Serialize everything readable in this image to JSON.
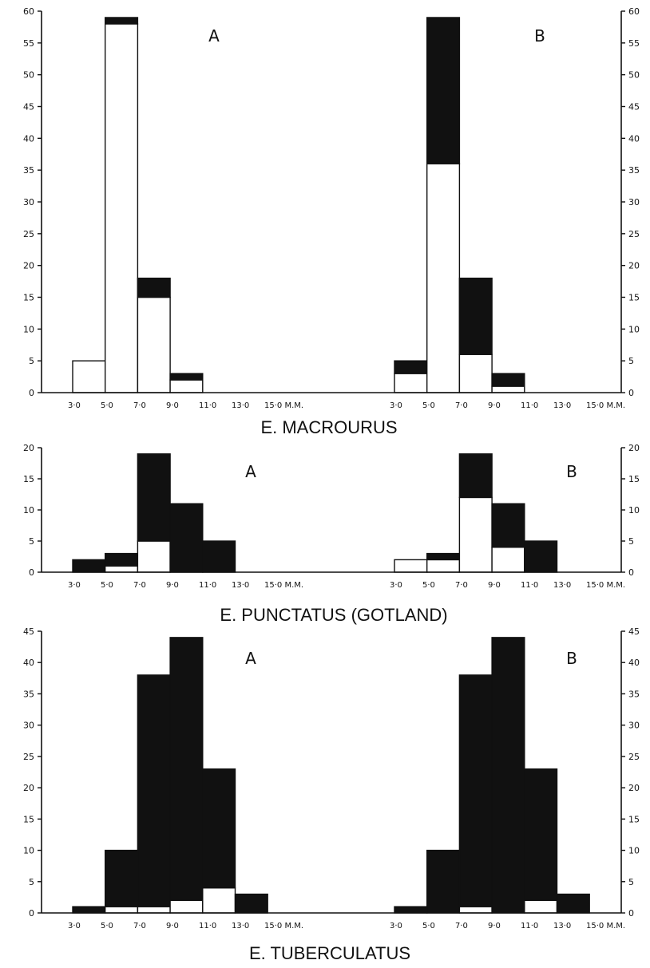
{
  "chart_data": [
    {
      "type": "bar",
      "stacked": true,
      "title": "E. MACROURUS",
      "x": [
        "3·0",
        "5·0",
        "7·0",
        "9·0",
        "11·0",
        "13·0",
        "15·0 M.M."
      ],
      "ylim": [
        0,
        60
      ],
      "yticks": [
        0,
        5,
        10,
        15,
        20,
        25,
        30,
        35,
        40,
        45,
        50,
        55,
        60
      ],
      "panels": [
        {
          "label": "A",
          "series": [
            {
              "name": "",
              "color": "#ffffff",
              "values": [
                5,
                58,
                15,
                2,
                0,
                0
              ]
            },
            {
              "name": "",
              "color": "#111111",
              "values": [
                0,
                1,
                3,
                1,
                0,
                0
              ]
            }
          ]
        },
        {
          "label": "B",
          "series": [
            {
              "name": "",
              "color": "#ffffff",
              "values": [
                3,
                36,
                6,
                1,
                0,
                0
              ]
            },
            {
              "name": "",
              "color": "#111111",
              "values": [
                2,
                23,
                12,
                2,
                0,
                0
              ]
            }
          ]
        }
      ]
    },
    {
      "type": "bar",
      "stacked": true,
      "title": "E. PUNCTATUS (GOTLAND)",
      "x": [
        "3·0",
        "5·0",
        "7·0",
        "9·0",
        "11·0",
        "13·0",
        "15·0 M.M."
      ],
      "ylim": [
        0,
        20
      ],
      "yticks": [
        0,
        5,
        10,
        15,
        20
      ],
      "panels": [
        {
          "label": "A",
          "series": [
            {
              "name": "",
              "color": "#ffffff",
              "values": [
                0,
                1,
                5,
                0,
                0,
                0
              ]
            },
            {
              "name": "",
              "color": "#111111",
              "values": [
                2,
                2,
                14,
                11,
                5,
                0
              ]
            }
          ]
        },
        {
          "label": "B",
          "series": [
            {
              "name": "",
              "color": "#ffffff",
              "values": [
                2,
                2,
                12,
                4,
                0,
                0
              ]
            },
            {
              "name": "",
              "color": "#111111",
              "values": [
                0,
                1,
                7,
                7,
                5,
                0
              ]
            }
          ]
        }
      ]
    },
    {
      "type": "bar",
      "stacked": true,
      "title": "E. TUBERCULATUS",
      "x": [
        "3·0",
        "5·0",
        "7·0",
        "9·0",
        "11·0",
        "13·0",
        "15·0 M.M."
      ],
      "ylim": [
        0,
        45
      ],
      "yticks": [
        0,
        5,
        10,
        15,
        20,
        25,
        30,
        35,
        40,
        45
      ],
      "panels": [
        {
          "label": "A",
          "series": [
            {
              "name": "",
              "color": "#ffffff",
              "values": [
                0,
                1,
                1,
                2,
                4,
                0
              ]
            },
            {
              "name": "",
              "color": "#111111",
              "values": [
                1,
                9,
                37,
                42,
                19,
                3
              ]
            }
          ]
        },
        {
          "label": "B",
          "series": [
            {
              "name": "",
              "color": "#ffffff",
              "values": [
                0,
                0,
                1,
                0,
                2,
                0
              ]
            },
            {
              "name": "",
              "color": "#111111",
              "values": [
                1,
                10,
                37,
                44,
                21,
                3
              ]
            }
          ]
        }
      ]
    }
  ]
}
